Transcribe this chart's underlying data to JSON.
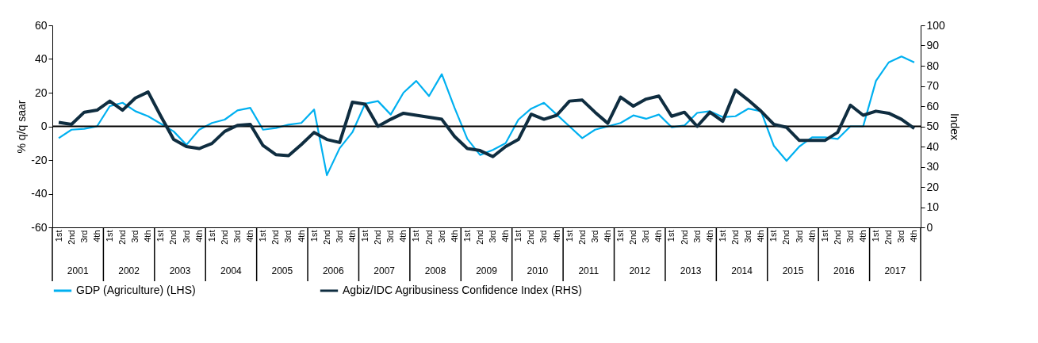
{
  "chart_data": {
    "type": "line",
    "ylabel": "% q/q saar",
    "y2label": "Index",
    "categories": [
      "1st",
      "2nd",
      "3rd",
      "4th",
      "1st",
      "2nd",
      "3rd",
      "4th",
      "1st",
      "2nd",
      "3rd",
      "4th",
      "1st",
      "2nd",
      "3rd",
      "4th",
      "1st",
      "2nd",
      "3rd",
      "4th",
      "1st",
      "2nd",
      "3rd",
      "4th",
      "1st",
      "2nd",
      "3rd",
      "4th",
      "1st",
      "2nd",
      "3rd",
      "4th",
      "1st",
      "2nd",
      "3rd",
      "4th",
      "1st",
      "2nd",
      "3rd",
      "4th",
      "1st",
      "2nd",
      "3rd",
      "4th",
      "1st",
      "2nd",
      "3rd",
      "4th",
      "1st",
      "2nd",
      "3rd",
      "4th",
      "1st",
      "2nd",
      "3rd",
      "4th",
      "1st",
      "2nd",
      "3rd",
      "4th",
      "1st",
      "2nd",
      "3rd",
      "4th",
      "1st",
      "2nd",
      "3rd",
      "4th"
    ],
    "annotations": [
      "2001",
      "2002",
      "2003",
      "2004",
      "2005",
      "2006",
      "2007",
      "2008",
      "2009",
      "2010",
      "2011",
      "2012",
      "2013",
      "2014",
      "2015",
      "2016",
      "2017"
    ],
    "series": [
      {
        "name": "GDP (Agriculture) (LHS)",
        "color": "#00b0f0",
        "values": [
          -7,
          -2,
          -1.5,
          0,
          12,
          14,
          9,
          6,
          1.5,
          -3,
          -11,
          -2,
          2,
          4,
          9.5,
          11,
          -2,
          -1,
          1,
          2,
          10,
          -29,
          -13,
          -3.5,
          13.5,
          15,
          7,
          20,
          27,
          18,
          31,
          11,
          -7.5,
          -17,
          -14,
          -10,
          4,
          10.5,
          14,
          7,
          0,
          -7,
          -2,
          0,
          2,
          6.5,
          4.5,
          7,
          -0.5,
          0.5,
          8,
          9,
          5.5,
          6,
          10.5,
          9,
          -11.5,
          -20.5,
          -12,
          -6.5,
          -6.5,
          -7.5,
          0,
          0,
          27,
          38,
          41.5,
          38
        ]
      },
      {
        "name": "Agbiz/IDC Agribusiness Confidence Index (RHS)",
        "color": "#0f2d40",
        "axis": "y2",
        "values": [
          52,
          51,
          57,
          58,
          62.5,
          58,
          64,
          67,
          55,
          43.5,
          40,
          39,
          41.5,
          47.5,
          50.5,
          51,
          40.5,
          36,
          35.5,
          41,
          47,
          43.5,
          42,
          62,
          61,
          50,
          53.5,
          56.5,
          55.5,
          54.5,
          53.5,
          45,
          39,
          38,
          35,
          40,
          43.5,
          56,
          53.5,
          55.5,
          62.5,
          63,
          57,
          51.5,
          64.5,
          60,
          63.5,
          65,
          55,
          57,
          50,
          57,
          52.5,
          68,
          63,
          57.5,
          51,
          49.5,
          43,
          43,
          43,
          47,
          60.5,
          55.5,
          57.5,
          56.5,
          53.5,
          49
        ]
      }
    ],
    "ylim": [
      -60,
      60
    ],
    "yticks": [
      -60,
      -40,
      -20,
      0,
      20,
      40,
      60
    ],
    "y2lim": [
      0,
      100
    ],
    "y2ticks": [
      0,
      10,
      20,
      30,
      40,
      50,
      60,
      70,
      80,
      90,
      100
    ],
    "ref_lines": [
      {
        "axis": "y",
        "value": 0,
        "color": "#000000"
      }
    ],
    "grid": false,
    "legend": "bottom"
  }
}
